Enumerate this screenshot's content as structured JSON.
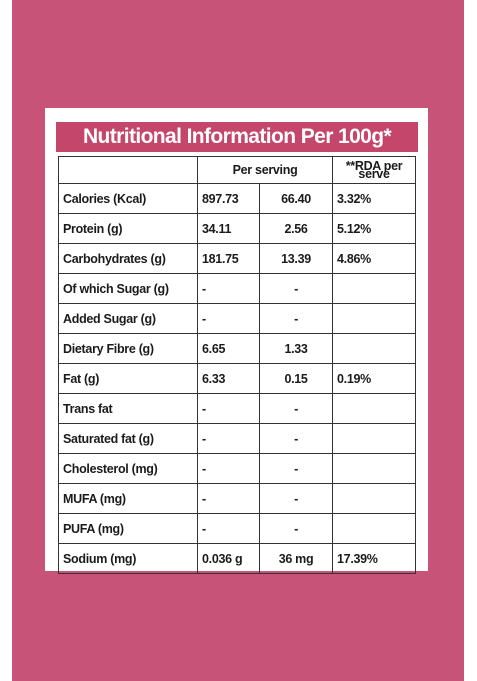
{
  "banner": {
    "title": "Nutritional Information Per 100g*"
  },
  "table": {
    "per_serving_header": "Per serving",
    "rda_header_line1": "**RDA per",
    "rda_header_line2": "serve",
    "rows": [
      {
        "nutrient": "Calories (Kcal)",
        "col_a": "897.73",
        "col_b": "66.40",
        "rda": "3.32%"
      },
      {
        "nutrient": "Protein (g)",
        "col_a": "34.11",
        "col_b": "2.56",
        "rda": "5.12%"
      },
      {
        "nutrient": "Carbohydrates (g)",
        "col_a": "181.75",
        "col_b": "13.39",
        "rda": "4.86%"
      },
      {
        "nutrient": "Of which Sugar (g)",
        "col_a": "-",
        "col_b": "-",
        "rda": ""
      },
      {
        "nutrient": "Added Sugar (g)",
        "col_a": "-",
        "col_b": "-",
        "rda": ""
      },
      {
        "nutrient": "Dietary Fibre (g)",
        "col_a": "6.65",
        "col_b": "1.33",
        "rda": ""
      },
      {
        "nutrient": "Fat (g)",
        "col_a": "6.33",
        "col_b": "0.15",
        "rda": "0.19%"
      },
      {
        "nutrient": "Trans fat",
        "col_a": "-",
        "col_b": "-",
        "rda": ""
      },
      {
        "nutrient": "Saturated fat (g)",
        "col_a": "-",
        "col_b": "-",
        "rda": ""
      },
      {
        "nutrient": "Cholesterol (mg)",
        "col_a": "-",
        "col_b": "-",
        "rda": ""
      },
      {
        "nutrient": "MUFA (mg)",
        "col_a": "-",
        "col_b": "-",
        "rda": ""
      },
      {
        "nutrient": "PUFA (mg)",
        "col_a": "-",
        "col_b": "-",
        "rda": ""
      },
      {
        "nutrient": "Sodium (mg)",
        "col_a": "0.036 g",
        "col_b": "36 mg",
        "rda": "17.39%"
      }
    ]
  },
  "colors": {
    "backdrop": "#c85379",
    "banner": "#c5466b",
    "card": "#ffffff",
    "text": "#1b1b1b",
    "border": "#333333"
  }
}
